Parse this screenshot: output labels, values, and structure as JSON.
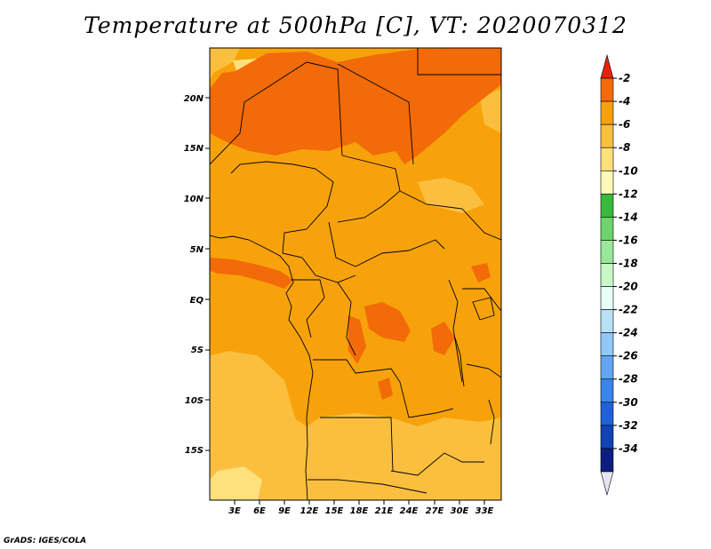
{
  "title": "Temperature at 500hPa [C], VT: 2020070312",
  "footer": "GrADS: IGES/COLA",
  "lat_labels": [
    "20N",
    "15N",
    "10N",
    "5N",
    "EQ",
    "5S",
    "10S",
    "15S"
  ],
  "lon_labels": [
    "3E",
    "6E",
    "9E",
    "12E",
    "15E",
    "18E",
    "21E",
    "24E",
    "27E",
    "30E",
    "33E"
  ],
  "colorbar": {
    "labels": [
      "-2",
      "-4",
      "-6",
      "-8",
      "-10",
      "-12",
      "-14",
      "-16",
      "-18",
      "-20",
      "-22",
      "-24",
      "-26",
      "-28",
      "-30",
      "-32",
      "-34"
    ],
    "colors": [
      "#e6220a",
      "#f26b08",
      "#f7a20a",
      "#fbbf3f",
      "#fee07d",
      "#fff8b8",
      "#3ab83a",
      "#6cd46c",
      "#98e898",
      "#c8f8c8",
      "#e8fff8",
      "#b8e0f8",
      "#90c8f8",
      "#62a6f2",
      "#3a86e8",
      "#1f62d8",
      "#1243b0",
      "#0c1f80",
      "#e4e4f4"
    ]
  },
  "colors": {
    "base": "#f7a20a",
    "warm": "#f26b08",
    "cool": "#fbbf3f",
    "cooler": "#fee07d"
  }
}
